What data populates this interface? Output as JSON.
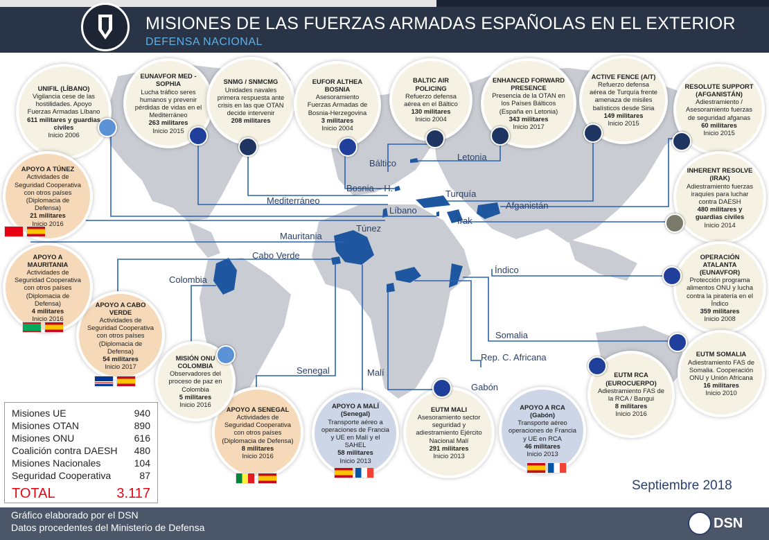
{
  "header": {
    "title": "MISIONES DE LAS FUERZAS ARMADAS ESPAÑOLAS EN EL EXTERIOR",
    "subtitle": "DEFENSA NACIONAL"
  },
  "colors": {
    "header": "#2a3447",
    "eu": "#1f3f9a",
    "otan": "#1f3561",
    "onu": "#5b92d6",
    "country": "#1e56a0",
    "line": "#2a62b0",
    "total": "#e30613"
  },
  "missions": {
    "unifil": {
      "t": "UNIFIL (LÍBANO)",
      "d": "Vigilancia cese de las hostilidades. Apoyo Fuerzas Armadas Líbano",
      "b": "611 militares y guardias civiles",
      "i": "Inicio 2006"
    },
    "sophia": {
      "t": "EUNAVFOR MED - SOPHIA",
      "d": "Lucha tráfico seres humanos y prevenir pérdidas de vidas en el Mediterráneo",
      "b": "263 militares",
      "i": "Inicio 2015"
    },
    "snmg": {
      "t": "SNMG / SNMCMG",
      "d": "Unidades navales primera respuesta ante crisis en las que OTAN decide intervenir",
      "b": "208 militares",
      "i": ""
    },
    "althea": {
      "t": "EUFOR ALTHEA BOSNIA",
      "d": "Asesoramiento Fuerzas Armadas de Bosnia-Herzegovina",
      "b": "3 militares",
      "i": "Inicio 2004"
    },
    "baltic": {
      "t": "BALTIC AIR POLICING",
      "d": "Refuerzo defensa aérea en el Báltico",
      "b": "130 militares",
      "i": "Inicio 2004"
    },
    "efp": {
      "t": "ENHANCED FORWARD PRESENCE",
      "d": "Presencia de la OTAN en los Países Bálticos (España en Letonia)",
      "b": "343 militares",
      "i": "Inicio 2017"
    },
    "fence": {
      "t": "ACTIVE FENCE (A/T)",
      "d": "Refuerzo defensa aérea de Turquía frente amenaza de misiles balísticos desde Siria",
      "b": "149 militares",
      "i": "Inicio 2015"
    },
    "resolute": {
      "t": "RESOLUTE SUPPORT (AFGANISTÁN)",
      "d": "Adiestramiento / Asesoramiento fuerzas de seguridad afganas",
      "b": "60 militares",
      "i": "Inicio 2015"
    },
    "inherent": {
      "t": "INHERENT RESOLVE (IRAK)",
      "d": "Adiestramiento fuerzas iraquíes para luchar contra DAESH",
      "b": "480 militares y guardias civiles",
      "i": "Inicio 2014"
    },
    "atalanta": {
      "t": "OPERACIÓN ATALANTA (EUNAVFOR)",
      "d": "Protección programa alimentos ONU y lucha contra la piratería en el Índico",
      "b": "359 militares",
      "i": "Inicio 2008"
    },
    "eutmsom": {
      "t": "EUTM SOMALIA",
      "d": "Adiestramiento FAS de Somalia. Cooperación ONU y Unión Africana",
      "b": "16 militares",
      "i": "Inicio 2010"
    },
    "eutmrca": {
      "t": "EUTM RCA (EUROCUERPO)",
      "d": "Adiestramiento FAS de la RCA / Bangui",
      "b": "8 militares",
      "i": "Inicio 2016"
    },
    "rca": {
      "t": "APOYO A RCA (Gabón)",
      "d": "Transporte aéreo operaciones de Francia y UE en RCA",
      "b": "46 militares",
      "i": "Inicio 2013"
    },
    "eutmmali": {
      "t": "EUTM MALI",
      "d": "Asesoramiento sector seguridad y adiestramiento Ejército Nacional Malí",
      "b": "291 militares",
      "i": "Inicio 2013"
    },
    "mali": {
      "t": "APOYO A MALÍ (Senegal)",
      "d": "Transporte aéreo a operaciones de Francia y UE en Malí y el SAHEL",
      "b": "58 militares",
      "i": "Inicio 2013"
    },
    "senegal": {
      "t": "APOYO A SENEGAL",
      "d": "Actividades de Seguridad Cooperativa con otros países (Diplomacia de Defensa)",
      "b": "8 militares",
      "i": "Inicio 2016"
    },
    "colombia": {
      "t": "MISIÓN ONU COLOMBIA",
      "d": "Observadores del proceso de paz en Colombia",
      "b": "5 militares",
      "i": "Inicio 2016"
    },
    "caboverde": {
      "t": "APOYO A CABO VERDE",
      "d": "Actividades de Seguridad Cooperativa con otros países (Diplomacia de Defensa)",
      "b": "54 militares",
      "i": "Inicio 2017"
    },
    "mauritania": {
      "t": "APOYO A MAURITANIA",
      "d": "Actividades de Seguridad Cooperativa con otros países (Diplomacia de Defensa)",
      "b": "4 militares",
      "i": "Inicio 2016"
    },
    "tunez": {
      "t": "APOYO A TÚNEZ",
      "d": "Actividades de Seguridad Cooperativa con otros países (Diplomacia de Defensa)",
      "b": "21 militares",
      "i": "Inicio 2016"
    }
  },
  "places": {
    "mediterraneo": "Mediterráneo",
    "libano": "Líbano",
    "tunez": "Túnez",
    "mauritania": "Mauritania",
    "caboverde": "Cabo Verde",
    "colombia": "Colombia",
    "senegal": "Senegal",
    "mali": "Malí",
    "gabon": "Gabón",
    "rca": "Rep. C. Africana",
    "somalia": "Somalia",
    "indico": "Índico",
    "irak": "Irak",
    "afganistan": "Afganistán",
    "turquia": "Turquía",
    "bosnia": "Bosnia – H.",
    "baltico": "Báltico",
    "letonia": "Letonia"
  },
  "totals": {
    "rows": [
      {
        "label": "Misiones UE",
        "value": "940"
      },
      {
        "label": "Misiones OTAN",
        "value": "890"
      },
      {
        "label": "Misiones ONU",
        "value": "616"
      },
      {
        "label": "Coalición contra DAESH",
        "value": "480"
      },
      {
        "label": "Misiones Nacionales",
        "value": "104"
      },
      {
        "label": "Seguridad Cooperativa",
        "value": "87"
      }
    ],
    "total_label": "TOTAL",
    "total_value": "3.117"
  },
  "date": "Septiembre  2018",
  "footer": {
    "line1": "Gráfico elaborado por el DSN",
    "line2": "Datos procedentes del Ministerio de Defensa",
    "logo": "DSN"
  }
}
